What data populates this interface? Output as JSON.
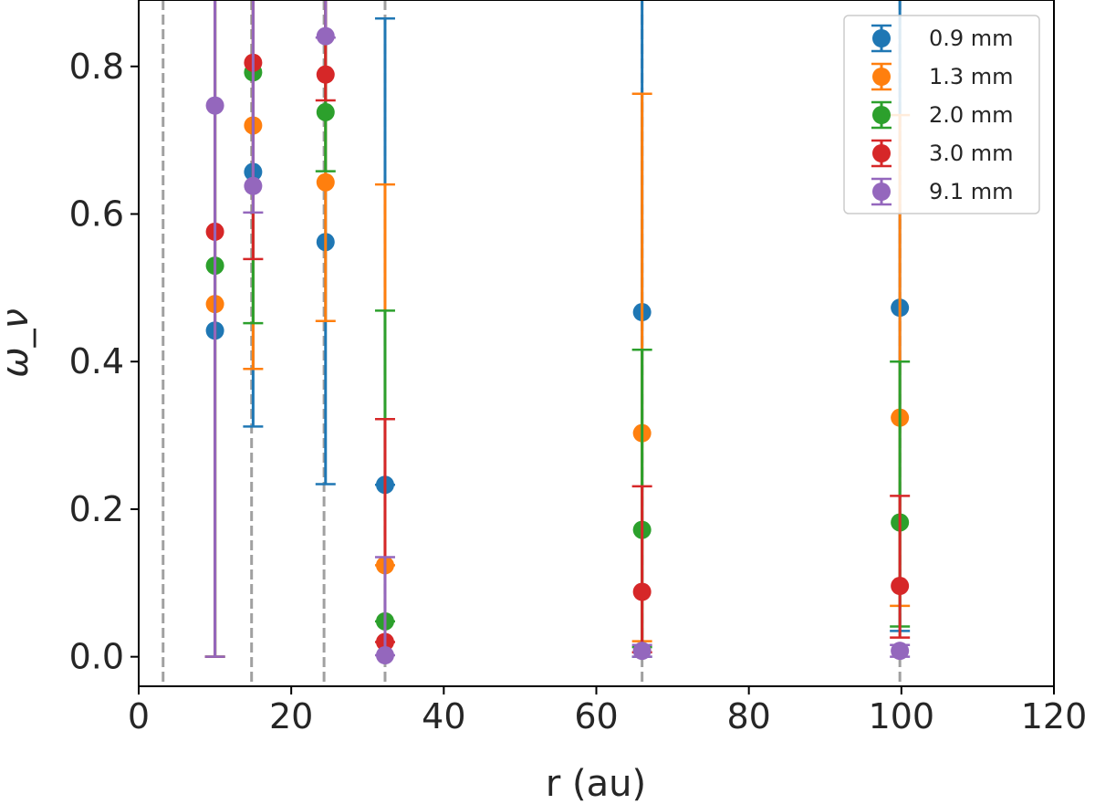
{
  "chart_data": {
    "type": "scatter",
    "title": "",
    "xlabel": "r (au)",
    "ylabel": "ω_ν",
    "xlim": [
      0,
      120
    ],
    "ylim": [
      -0.04,
      0.89
    ],
    "xticks": [
      0,
      20,
      40,
      60,
      80,
      100,
      120
    ],
    "yticks": [
      0.0,
      0.2,
      0.4,
      0.6,
      0.8
    ],
    "xtick_labels": [
      "0",
      "20",
      "40",
      "60",
      "80",
      "100",
      "120"
    ],
    "ytick_labels": [
      "0.0",
      "0.2",
      "0.4",
      "0.6",
      "0.8"
    ],
    "vlines": [
      3.2,
      14.8,
      24.3,
      32.3,
      66.0,
      99.8
    ],
    "vline_color": "#a0a0a0",
    "legend_position": "top-right",
    "series": [
      {
        "name": "0.9 mm",
        "color": "#1f77b4",
        "x": [
          10.0,
          15.0,
          24.5,
          32.3,
          66.0,
          99.8
        ],
        "y": [
          0.442,
          0.657,
          0.562,
          0.233,
          0.467,
          0.473
        ],
        "err_low": [
          0.442,
          0.345,
          0.328,
          0.0,
          0.467,
          0.438
        ],
        "err_high": [
          0.5,
          0.69,
          0.58,
          0.632,
          0.503,
          0.492
        ]
      },
      {
        "name": "1.3 mm",
        "color": "#ff7f0e",
        "x": [
          10.0,
          15.0,
          24.5,
          32.3,
          66.0,
          99.8
        ],
        "y": [
          0.478,
          0.72,
          0.643,
          0.124,
          0.303,
          0.324
        ],
        "err_low": [
          0.478,
          0.33,
          0.188,
          0.0,
          0.282,
          0.255
        ],
        "err_high": [
          0.556,
          0.72,
          0.662,
          0.516,
          0.46,
          0.41
        ]
      },
      {
        "name": "2.0 mm",
        "color": "#2ca02c",
        "x": [
          10.0,
          15.0,
          24.5,
          32.3,
          66.0,
          99.8
        ],
        "y": [
          0.53,
          0.792,
          0.738,
          0.048,
          0.172,
          0.182
        ],
        "err_low": [
          0.53,
          0.34,
          0.08,
          0.0,
          0.159,
          0.141
        ],
        "err_high": [
          0.63,
          0.792,
          0.75,
          0.421,
          0.244,
          0.218
        ]
      },
      {
        "name": "3.0 mm",
        "color": "#d62728",
        "x": [
          10.0,
          15.0,
          24.5,
          32.3,
          66.0,
          99.8
        ],
        "y": [
          0.576,
          0.805,
          0.789,
          0.02,
          0.088,
          0.096
        ],
        "err_low": [
          0.576,
          0.266,
          0.035,
          0.0,
          0.082,
          0.07
        ],
        "err_high": [
          0.692,
          0.805,
          0.789,
          0.302,
          0.143,
          0.122
        ]
      },
      {
        "name": "9.1 mm",
        "color": "#9467bd",
        "x": [
          10.0,
          15.0,
          24.5,
          32.3,
          66.0,
          99.8
        ],
        "y": [
          0.747,
          0.638,
          0.841,
          0.002,
          0.008,
          0.008
        ],
        "err_low": [
          0.747,
          0.036,
          0.002,
          0.0,
          0.008,
          0.008
        ],
        "err_high": [
          0.853,
          0.845,
          0.841,
          0.133,
          0.008,
          0.008
        ]
      }
    ]
  }
}
